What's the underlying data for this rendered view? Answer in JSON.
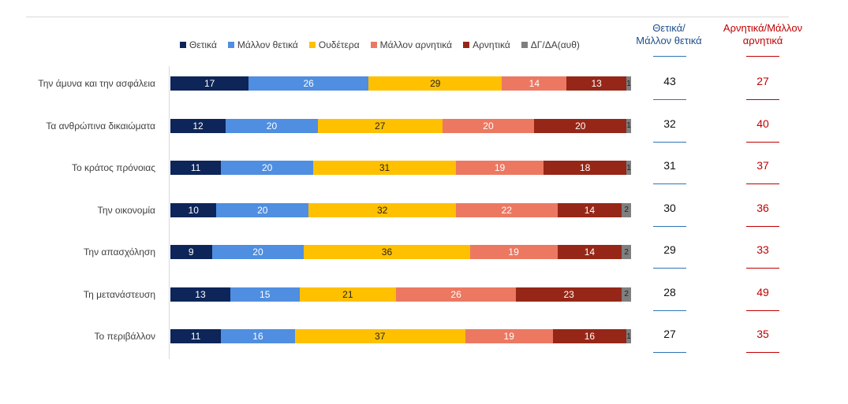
{
  "chart_data": {
    "type": "bar",
    "orientation": "horizontal",
    "stacked": true,
    "legend_position": "top",
    "xlim": [
      0,
      100
    ],
    "categories": [
      "Την άμυνα και την ασφάλεια",
      "Τα ανθρώπινα δικαιώματα",
      "Το κράτος πρόνοιας",
      "Την οικονομία",
      "Την απασχόληση",
      "Τη μετανάστευση",
      "Το περιβάλλον"
    ],
    "series": [
      {
        "name": "Θετικά",
        "color": "#0d2559",
        "text_color": "#ffffff",
        "values": [
          17,
          12,
          11,
          10,
          9,
          13,
          11
        ]
      },
      {
        "name": "Μάλλον θετικά",
        "color": "#4f8ee0",
        "text_color": "#ffffff",
        "values": [
          26,
          20,
          20,
          20,
          20,
          15,
          16
        ]
      },
      {
        "name": "Ουδέτερα",
        "color": "#ffc000",
        "text_color": "#222222",
        "values": [
          29,
          27,
          31,
          32,
          36,
          21,
          37
        ]
      },
      {
        "name": "Μάλλον αρνητικά",
        "color": "#ec7862",
        "text_color": "#ffffff",
        "values": [
          14,
          20,
          19,
          22,
          19,
          26,
          19
        ]
      },
      {
        "name": "Αρνητικά",
        "color": "#962718",
        "text_color": "#ffffff",
        "values": [
          13,
          20,
          18,
          14,
          14,
          23,
          16
        ]
      },
      {
        "name": "ΔΓ/ΔΑ(αυθ)",
        "color": "#7f7f7f",
        "text_color": "#222222",
        "values": [
          1,
          1,
          1,
          2,
          2,
          2,
          1
        ]
      }
    ],
    "summary_columns": [
      {
        "title_line1": "Θετικά/",
        "title_line2": "Μάλλον θετικά",
        "color": "#1f4e8c",
        "values": [
          43,
          32,
          31,
          30,
          29,
          28,
          27
        ]
      },
      {
        "title_line1": "Αρνητικά/Μάλλον",
        "title_line2": "αρνητικά",
        "color": "#c00000",
        "values": [
          27,
          40,
          37,
          36,
          33,
          49,
          35
        ]
      }
    ]
  }
}
